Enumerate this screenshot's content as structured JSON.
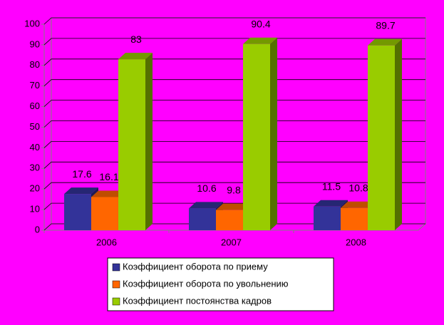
{
  "chart_data": {
    "type": "bar3d",
    "categories": [
      "2006",
      "2007",
      "2008"
    ],
    "series": [
      {
        "name": "Коэффициент оборота по приему",
        "color": "#333399",
        "values": [
          17.6,
          10.6,
          11.5
        ]
      },
      {
        "name": "Коэффициент оборота по увольнению",
        "color": "#ff6600",
        "values": [
          16.1,
          9.8,
          10.8
        ]
      },
      {
        "name": "Коэффициент постоянства кадров",
        "color": "#99cc00",
        "values": [
          83,
          90.4,
          89.7
        ]
      }
    ],
    "ylim": [
      0,
      100
    ],
    "yticks": [
      0,
      10,
      20,
      30,
      40,
      50,
      60,
      70,
      80,
      90,
      100
    ],
    "grid": true,
    "legend": "bottom"
  }
}
